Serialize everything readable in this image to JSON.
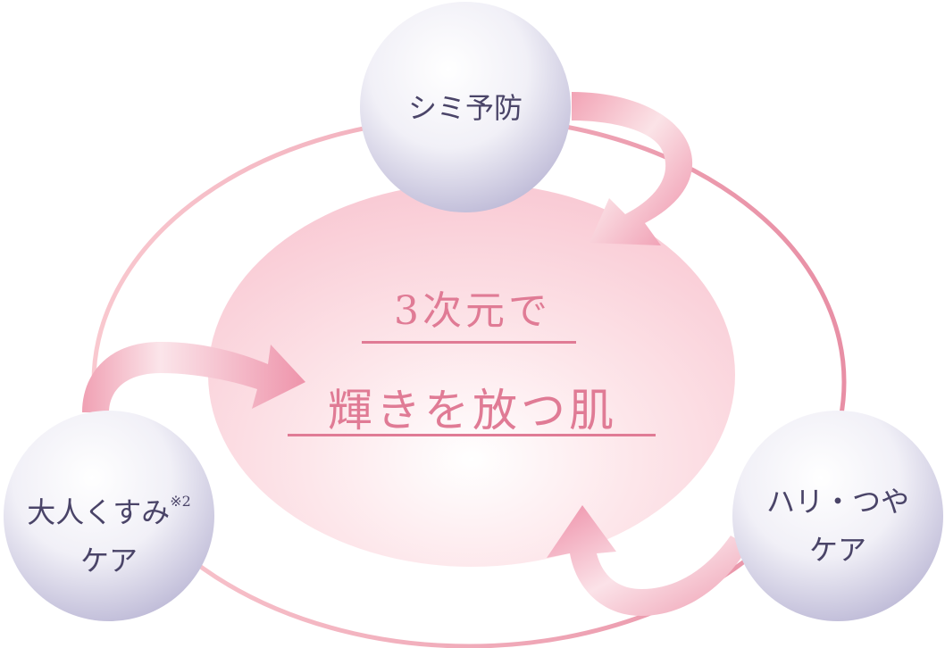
{
  "diagram": {
    "center": {
      "line1": "3次元で",
      "line2": "輝きを放つ肌"
    },
    "nodes": {
      "top": {
        "label": "シミ予防"
      },
      "left": {
        "line1": "大人くすみ",
        "note": "※2",
        "line2": "ケア"
      },
      "right": {
        "line1": "ハリ・つや",
        "line2": "ケア"
      }
    },
    "colors": {
      "center_text": "#e07b95",
      "node_text": "#4a4468",
      "ring": "#eb9aab",
      "arrow": "#ef9fb2"
    }
  }
}
